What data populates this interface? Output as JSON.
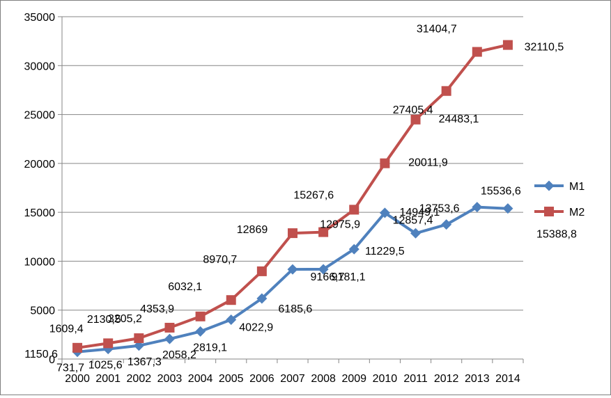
{
  "chart_data": {
    "type": "line",
    "title": "",
    "xlabel": "",
    "ylabel": "",
    "x": [
      "2000",
      "2001",
      "2002",
      "2003",
      "2004",
      "2005",
      "2006",
      "2007",
      "2008",
      "2009",
      "2010",
      "2011",
      "2012",
      "2013",
      "2014"
    ],
    "ylim": [
      0,
      35000
    ],
    "yticks": [
      "0",
      "5000",
      "10000",
      "15000",
      "20000",
      "25000",
      "30000",
      "35000"
    ],
    "grid": "horizontal",
    "legend_position": "right",
    "series": [
      {
        "name": "M1",
        "color": "#4F81BD",
        "marker": "diamond",
        "values": [
          731.7,
          1025.6,
          1367.3,
          2058.2,
          2819.1,
          4022.9,
          6185.6,
          9166.7,
          9181.1,
          11229.5,
          14949.1,
          12857.4,
          13753.6,
          15536.6,
          15388.8
        ],
        "labels": [
          "731,7",
          "1025,6",
          "1367,3",
          "2058,2",
          "2819,1",
          "4022,9",
          "6185,6",
          "9166,7",
          "9181,1",
          "11229,5",
          "14949,1",
          "12857,4",
          "13753,6",
          "15536,6",
          "15388,8"
        ]
      },
      {
        "name": "M2",
        "color": "#C0504D",
        "marker": "square",
        "values": [
          1150.6,
          1609.4,
          2130.5,
          3205.2,
          4353.9,
          6032.1,
          8970.7,
          12869,
          12975.9,
          15267.6,
          20011.9,
          24483.1,
          27405.4,
          31404.7,
          32110.5
        ],
        "labels": [
          "1150,6",
          "1609,4",
          "2130,5",
          "3205,2",
          "4353,9",
          "6032,1",
          "8970,7",
          "12869",
          "12975,9",
          "15267,6",
          "20011,9",
          "24483,1",
          "27405,4",
          "31404,7",
          "32110,5"
        ]
      }
    ]
  }
}
